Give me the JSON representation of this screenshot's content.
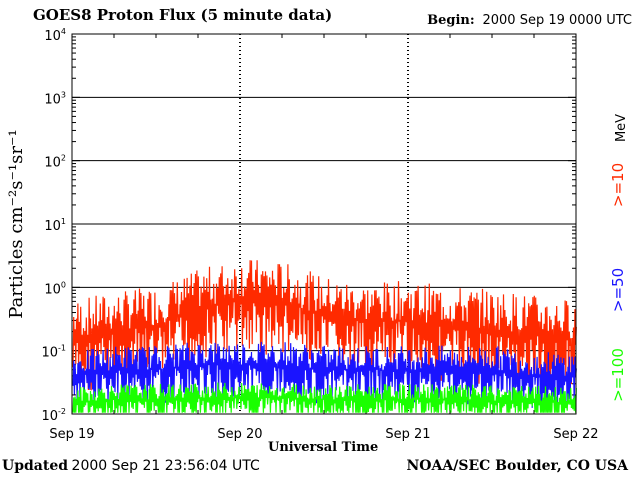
{
  "header": {
    "title": "GOES8 Proton Flux (5 minute data)",
    "begin_label": "Begin:",
    "begin_value": "2000 Sep 19 0000 UTC"
  },
  "footer": {
    "updated_label": "Updated",
    "updated_value": "2000 Sep 21 23:56:04 UTC",
    "credit": "NOAA/SEC Boulder, CO USA"
  },
  "chart_data": {
    "type": "line",
    "title": "GOES8 Proton Flux (5 minute data)",
    "xlabel": "Universal Time",
    "ylabel": "Particles cm⁻²s⁻¹sr⁻¹",
    "yscale": "log",
    "ylim": [
      0.01,
      10000
    ],
    "y_ticks": [
      {
        "value": 0.01,
        "base": "10",
        "exp": "-2"
      },
      {
        "value": 0.1,
        "base": "10",
        "exp": "-1"
      },
      {
        "value": 1,
        "base": "10",
        "exp": "0"
      },
      {
        "value": 10,
        "base": "10",
        "exp": "1"
      },
      {
        "value": 100,
        "base": "10",
        "exp": "2"
      },
      {
        "value": 1000,
        "base": "10",
        "exp": "3"
      },
      {
        "value": 10000,
        "base": "10",
        "exp": "4"
      }
    ],
    "x_ticks": [
      "Sep 19",
      "Sep 20",
      "Sep 21",
      "Sep 22"
    ],
    "xlim": [
      "2000-09-19",
      "2000-09-22"
    ],
    "grid": true,
    "legend_position": "right-vertical",
    "series": [
      {
        "name": ">=10",
        "color": "#ff2a00",
        "x": [
          "2000-09-19 00:00",
          "2000-09-19 06:00",
          "2000-09-19 12:00",
          "2000-09-19 18:00",
          "2000-09-20 00:00",
          "2000-09-20 06:00",
          "2000-09-20 12:00",
          "2000-09-20 18:00",
          "2000-09-21 00:00",
          "2000-09-21 06:00",
          "2000-09-21 12:00",
          "2000-09-21 18:00",
          "2000-09-22 00:00"
        ],
        "y": [
          0.15,
          0.2,
          0.25,
          0.45,
          0.7,
          0.6,
          0.35,
          0.28,
          0.3,
          0.25,
          0.22,
          0.18,
          0.15
        ]
      },
      {
        "name": ">=50",
        "color": "#1a14ff",
        "x": [
          "2000-09-19 00:00",
          "2000-09-19 06:00",
          "2000-09-19 12:00",
          "2000-09-19 18:00",
          "2000-09-20 00:00",
          "2000-09-20 06:00",
          "2000-09-20 12:00",
          "2000-09-20 18:00",
          "2000-09-21 00:00",
          "2000-09-21 06:00",
          "2000-09-21 12:00",
          "2000-09-21 18:00",
          "2000-09-22 00:00"
        ],
        "y": [
          0.04,
          0.05,
          0.05,
          0.06,
          0.06,
          0.06,
          0.05,
          0.05,
          0.05,
          0.05,
          0.05,
          0.04,
          0.04
        ]
      },
      {
        "name": ">=100",
        "color": "#1aff00",
        "x": [
          "2000-09-19 00:00",
          "2000-09-19 06:00",
          "2000-09-19 12:00",
          "2000-09-19 18:00",
          "2000-09-20 00:00",
          "2000-09-20 06:00",
          "2000-09-20 12:00",
          "2000-09-20 18:00",
          "2000-09-21 00:00",
          "2000-09-21 06:00",
          "2000-09-21 12:00",
          "2000-09-21 18:00",
          "2000-09-22 00:00"
        ],
        "y": [
          0.015,
          0.017,
          0.017,
          0.018,
          0.018,
          0.018,
          0.017,
          0.017,
          0.017,
          0.017,
          0.016,
          0.016,
          0.015
        ]
      }
    ],
    "legend_unit": "MeV"
  }
}
